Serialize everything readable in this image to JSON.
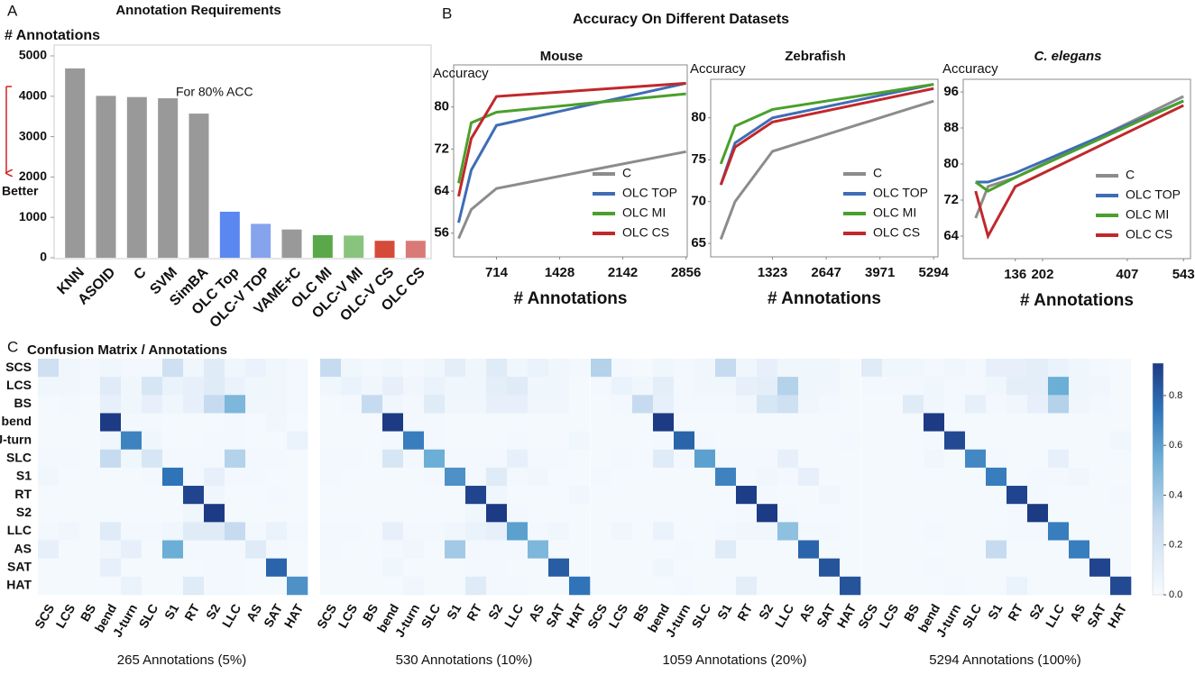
{
  "panels": [
    {
      "label": "A"
    },
    {
      "label": "B",
      "title": "Accuracy On Different Datasets"
    },
    {
      "label": "C",
      "title": "Confusion Matrix / Annotations"
    }
  ],
  "chart_data": [
    {
      "type": "bar",
      "title": "Annotation Requirements",
      "ylabel": "# Annotations",
      "annotations": [
        "For 80% ACC",
        "Better"
      ],
      "categories": [
        "KNN",
        "ASOID",
        "C",
        "SVM",
        "SimBA",
        "OLC Top",
        "OLC-V TOP",
        "VAME+C",
        "OLC MI",
        "OLC-V MI",
        "OLC-V CS",
        "OLC CS"
      ],
      "values": [
        4690,
        4010,
        3980,
        3950,
        3570,
        1140,
        840,
        700,
        560,
        550,
        420,
        420
      ],
      "colors": [
        "#999999",
        "#999999",
        "#999999",
        "#999999",
        "#999999",
        "#5a87f0",
        "#86a3ee",
        "#999999",
        "#5aa84a",
        "#88c47c",
        "#d64a3a",
        "#d97a78"
      ],
      "ylim": [
        0,
        5000
      ],
      "yticks": [
        0,
        1000,
        2000,
        3000,
        4000,
        5000
      ]
    },
    {
      "type": "line",
      "title": "Mouse",
      "ylabel": "Accuracy",
      "xlabel": "# Annotations",
      "legend": "lower right",
      "x": [
        286,
        429,
        714,
        2856
      ],
      "series": [
        {
          "name": "C",
          "color": "#8c8c8c",
          "values": [
            55,
            60.5,
            64.5,
            71.5
          ]
        },
        {
          "name": "OLC TOP",
          "color": "#3f6db5",
          "values": [
            58,
            68,
            76.5,
            84.5
          ]
        },
        {
          "name": "OLC MI",
          "color": "#4aa02c",
          "values": [
            65.5,
            77,
            79,
            82.5
          ]
        },
        {
          "name": "OLC CS",
          "color": "#c0282c",
          "values": [
            63,
            74,
            82,
            84.5
          ]
        }
      ],
      "xlim": [
        230,
        2870
      ],
      "ylim": [
        51.5,
        88
      ],
      "xticks": [
        714,
        1428,
        2142,
        2856
      ],
      "yticks": [
        56,
        64,
        72,
        80
      ]
    },
    {
      "type": "line",
      "title": "Zebrafish",
      "ylabel": "Accuracy",
      "xlabel": "# Annotations",
      "legend": "lower right",
      "x": [
        50,
        400,
        1323,
        5294
      ],
      "series": [
        {
          "name": "C",
          "color": "#8c8c8c",
          "values": [
            65.5,
            70,
            76,
            82
          ]
        },
        {
          "name": "OLC TOP",
          "color": "#3f6db5",
          "values": [
            72,
            77,
            80,
            84
          ]
        },
        {
          "name": "OLC MI",
          "color": "#4aa02c",
          "values": [
            74.5,
            79,
            81,
            84
          ]
        },
        {
          "name": "OLC CS",
          "color": "#c0282c",
          "values": [
            72,
            76.5,
            79.5,
            83.5
          ]
        }
      ],
      "xlim": [
        -200,
        5400
      ],
      "ylim": [
        63.4,
        84.6
      ],
      "xticks": [
        1323,
        2647,
        3971,
        5294
      ],
      "yticks": [
        65,
        70,
        75,
        80
      ]
    },
    {
      "type": "line",
      "title": "C. elegans",
      "ylabel": "Accuracy",
      "xlabel": "# Annotations",
      "legend": "lower right",
      "title_italic": true,
      "x": [
        40,
        70,
        136,
        543
      ],
      "series": [
        {
          "name": "C",
          "color": "#8c8c8c",
          "values": [
            68,
            75,
            77,
            95
          ]
        },
        {
          "name": "OLC TOP",
          "color": "#3f6db5",
          "values": [
            76,
            76,
            78,
            94
          ]
        },
        {
          "name": "OLC MI",
          "color": "#4aa02c",
          "values": [
            76,
            74,
            77,
            94
          ]
        },
        {
          "name": "OLC CS",
          "color": "#c0282c",
          "values": [
            74,
            64,
            75,
            93
          ]
        }
      ],
      "xlim": [
        10,
        560
      ],
      "ylim": [
        59,
        98.8
      ],
      "xticks": [
        136,
        202,
        407,
        543
      ],
      "yticks": [
        64,
        72,
        80,
        88,
        96
      ]
    },
    {
      "type": "heatmap",
      "xlabel": "265 Annotations (5%)",
      "rows": [
        "SCS",
        "LCS",
        "BS",
        "bend",
        "J-turn",
        "SLC",
        "S1",
        "RT",
        "S2",
        "LLC",
        "AS",
        "SAT",
        "HAT"
      ],
      "categories": [
        "SCS",
        "LCS",
        "BS",
        "bend",
        "J-turn",
        "SLC",
        "S1",
        "RT",
        "S2",
        "LLC",
        "AS",
        "SAT",
        "HAT"
      ],
      "values": [
        [
          0.25,
          0.05,
          0.03,
          0.05,
          0.03,
          0.03,
          0.25,
          0.05,
          0.15,
          0.05,
          0.08,
          0.05,
          0.03
        ],
        [
          0.05,
          0.05,
          0.03,
          0.15,
          0.05,
          0.2,
          0.08,
          0.1,
          0.15,
          0.08,
          0.05,
          0.05,
          0.03
        ],
        [
          0.02,
          0.03,
          0.02,
          0.1,
          0.05,
          0.1,
          0.05,
          0.1,
          0.3,
          0.5,
          0.05,
          0.05,
          0.03
        ],
        [
          0.02,
          0.02,
          0.02,
          0.93,
          0.03,
          0.03,
          0.02,
          0.02,
          0.02,
          0.03,
          0.02,
          0.05,
          0.02
        ],
        [
          0.02,
          0.02,
          0.02,
          0.05,
          0.7,
          0.05,
          0.02,
          0.02,
          0.03,
          0.03,
          0.02,
          0.02,
          0.08
        ],
        [
          0.03,
          0.03,
          0.02,
          0.3,
          0.05,
          0.2,
          0.03,
          0.03,
          0.03,
          0.35,
          0.03,
          0.03,
          0.02
        ],
        [
          0.05,
          0.02,
          0.02,
          0.02,
          0.02,
          0.03,
          0.75,
          0.03,
          0.1,
          0.03,
          0.03,
          0.02,
          0.02
        ],
        [
          0.02,
          0.02,
          0.02,
          0.02,
          0.02,
          0.02,
          0.02,
          0.9,
          0.05,
          0.02,
          0.02,
          0.03,
          0.02
        ],
        [
          0.02,
          0.02,
          0.02,
          0.02,
          0.02,
          0.02,
          0.02,
          0.05,
          0.93,
          0.02,
          0.02,
          0.02,
          0.02
        ],
        [
          0.03,
          0.05,
          0.02,
          0.15,
          0.03,
          0.03,
          0.05,
          0.15,
          0.15,
          0.3,
          0.03,
          0.08,
          0.03
        ],
        [
          0.1,
          0.02,
          0.02,
          0.05,
          0.1,
          0.02,
          0.55,
          0.03,
          0.03,
          0.03,
          0.15,
          0.03,
          0.02
        ],
        [
          0.02,
          0.02,
          0.02,
          0.1,
          0.02,
          0.02,
          0.02,
          0.02,
          0.03,
          0.03,
          0.02,
          0.8,
          0.02
        ],
        [
          0.02,
          0.02,
          0.02,
          0.02,
          0.08,
          0.02,
          0.02,
          0.15,
          0.03,
          0.03,
          0.02,
          0.02,
          0.65
        ]
      ]
    },
    {
      "type": "heatmap",
      "xlabel": "530 Annotations (10%)",
      "categories": [
        "SCS",
        "LCS",
        "BS",
        "bend",
        "J-turn",
        "SLC",
        "S1",
        "RT",
        "S2",
        "LLC",
        "AS",
        "SAT",
        "HAT"
      ],
      "values": [
        [
          0.3,
          0.05,
          0.03,
          0.05,
          0.03,
          0.05,
          0.12,
          0.05,
          0.15,
          0.05,
          0.08,
          0.05,
          0.03
        ],
        [
          0.05,
          0.08,
          0.05,
          0.1,
          0.05,
          0.08,
          0.05,
          0.05,
          0.12,
          0.15,
          0.05,
          0.05,
          0.02
        ],
        [
          0.02,
          0.03,
          0.3,
          0.05,
          0.03,
          0.15,
          0.05,
          0.05,
          0.1,
          0.1,
          0.05,
          0.05,
          0.02
        ],
        [
          0.02,
          0.02,
          0.02,
          0.93,
          0.03,
          0.03,
          0.02,
          0.02,
          0.02,
          0.02,
          0.02,
          0.02,
          0.02
        ],
        [
          0.02,
          0.02,
          0.02,
          0.03,
          0.72,
          0.03,
          0.02,
          0.02,
          0.02,
          0.03,
          0.02,
          0.02,
          0.05
        ],
        [
          0.03,
          0.03,
          0.02,
          0.2,
          0.03,
          0.55,
          0.03,
          0.03,
          0.03,
          0.1,
          0.03,
          0.03,
          0.02
        ],
        [
          0.03,
          0.02,
          0.02,
          0.02,
          0.02,
          0.03,
          0.65,
          0.03,
          0.15,
          0.03,
          0.05,
          0.02,
          0.02
        ],
        [
          0.02,
          0.02,
          0.02,
          0.02,
          0.02,
          0.02,
          0.02,
          0.9,
          0.05,
          0.02,
          0.02,
          0.02,
          0.05
        ],
        [
          0.02,
          0.02,
          0.02,
          0.02,
          0.02,
          0.02,
          0.02,
          0.05,
          0.93,
          0.03,
          0.02,
          0.02,
          0.02
        ],
        [
          0.03,
          0.03,
          0.02,
          0.1,
          0.03,
          0.03,
          0.05,
          0.08,
          0.1,
          0.6,
          0.03,
          0.05,
          0.02
        ],
        [
          0.03,
          0.02,
          0.02,
          0.03,
          0.05,
          0.02,
          0.4,
          0.03,
          0.03,
          0.03,
          0.5,
          0.02,
          0.02
        ],
        [
          0.02,
          0.02,
          0.02,
          0.05,
          0.02,
          0.02,
          0.02,
          0.03,
          0.03,
          0.02,
          0.02,
          0.82,
          0.02
        ],
        [
          0.02,
          0.02,
          0.02,
          0.02,
          0.05,
          0.02,
          0.02,
          0.15,
          0.03,
          0.03,
          0.02,
          0.02,
          0.75
        ]
      ]
    },
    {
      "type": "heatmap",
      "xlabel": "1059 Annotations (20%)",
      "categories": [
        "SCS",
        "LCS",
        "BS",
        "bend",
        "J-turn",
        "SLC",
        "S1",
        "RT",
        "S2",
        "LLC",
        "AS",
        "SAT",
        "HAT"
      ],
      "values": [
        [
          0.35,
          0.03,
          0.02,
          0.05,
          0.03,
          0.05,
          0.3,
          0.05,
          0.1,
          0.05,
          0.05,
          0.05,
          0.02
        ],
        [
          0.03,
          0.08,
          0.05,
          0.12,
          0.03,
          0.05,
          0.05,
          0.1,
          0.12,
          0.35,
          0.05,
          0.05,
          0.02
        ],
        [
          0.02,
          0.03,
          0.3,
          0.1,
          0.03,
          0.03,
          0.03,
          0.05,
          0.2,
          0.25,
          0.05,
          0.03,
          0.02
        ],
        [
          0.02,
          0.02,
          0.02,
          0.93,
          0.02,
          0.02,
          0.02,
          0.02,
          0.02,
          0.02,
          0.02,
          0.02,
          0.02
        ],
        [
          0.02,
          0.02,
          0.02,
          0.03,
          0.8,
          0.03,
          0.02,
          0.02,
          0.02,
          0.02,
          0.02,
          0.02,
          0.03
        ],
        [
          0.02,
          0.03,
          0.02,
          0.15,
          0.03,
          0.6,
          0.03,
          0.03,
          0.03,
          0.1,
          0.02,
          0.02,
          0.02
        ],
        [
          0.03,
          0.02,
          0.02,
          0.02,
          0.02,
          0.02,
          0.7,
          0.03,
          0.05,
          0.03,
          0.1,
          0.02,
          0.02
        ],
        [
          0.02,
          0.02,
          0.02,
          0.02,
          0.02,
          0.02,
          0.02,
          0.92,
          0.03,
          0.02,
          0.02,
          0.05,
          0.02
        ],
        [
          0.02,
          0.02,
          0.02,
          0.02,
          0.02,
          0.02,
          0.02,
          0.03,
          0.93,
          0.03,
          0.02,
          0.02,
          0.02
        ],
        [
          0.02,
          0.05,
          0.02,
          0.08,
          0.02,
          0.02,
          0.03,
          0.05,
          0.05,
          0.45,
          0.03,
          0.03,
          0.02
        ],
        [
          0.02,
          0.02,
          0.02,
          0.02,
          0.03,
          0.02,
          0.15,
          0.02,
          0.02,
          0.02,
          0.8,
          0.02,
          0.02
        ],
        [
          0.02,
          0.02,
          0.02,
          0.05,
          0.02,
          0.02,
          0.02,
          0.02,
          0.02,
          0.02,
          0.02,
          0.85,
          0.02
        ],
        [
          0.02,
          0.02,
          0.02,
          0.02,
          0.03,
          0.02,
          0.02,
          0.12,
          0.02,
          0.02,
          0.02,
          0.02,
          0.85
        ]
      ]
    },
    {
      "type": "heatmap",
      "xlabel": "5294 Annotations (100%)",
      "categories": [
        "SCS",
        "LCS",
        "BS",
        "bend",
        "J-turn",
        "SLC",
        "S1",
        "RT",
        "S2",
        "LLC",
        "AS",
        "SAT",
        "HAT"
      ],
      "values": [
        [
          0.15,
          0.05,
          0.05,
          0.03,
          0.05,
          0.03,
          0.1,
          0.1,
          0.12,
          0.08,
          0.05,
          0.03,
          0.02
        ],
        [
          0.03,
          0.03,
          0.03,
          0.05,
          0.03,
          0.03,
          0.05,
          0.12,
          0.12,
          0.55,
          0.05,
          0.05,
          0.02
        ],
        [
          0.02,
          0.02,
          0.15,
          0.05,
          0.03,
          0.1,
          0.03,
          0.05,
          0.1,
          0.35,
          0.05,
          0.03,
          0.02
        ],
        [
          0.02,
          0.02,
          0.02,
          0.93,
          0.02,
          0.02,
          0.02,
          0.02,
          0.02,
          0.02,
          0.02,
          0.02,
          0.02
        ],
        [
          0.02,
          0.02,
          0.02,
          0.03,
          0.88,
          0.02,
          0.02,
          0.02,
          0.02,
          0.02,
          0.02,
          0.02,
          0.05
        ],
        [
          0.02,
          0.02,
          0.02,
          0.05,
          0.02,
          0.68,
          0.03,
          0.02,
          0.02,
          0.1,
          0.02,
          0.02,
          0.02
        ],
        [
          0.02,
          0.02,
          0.02,
          0.02,
          0.02,
          0.02,
          0.72,
          0.02,
          0.03,
          0.03,
          0.05,
          0.02,
          0.02
        ],
        [
          0.02,
          0.02,
          0.02,
          0.02,
          0.02,
          0.02,
          0.02,
          0.9,
          0.03,
          0.02,
          0.02,
          0.02,
          0.03
        ],
        [
          0.02,
          0.02,
          0.02,
          0.02,
          0.02,
          0.02,
          0.02,
          0.03,
          0.95,
          0.02,
          0.02,
          0.02,
          0.02
        ],
        [
          0.02,
          0.02,
          0.02,
          0.03,
          0.02,
          0.02,
          0.02,
          0.03,
          0.03,
          0.72,
          0.02,
          0.02,
          0.02
        ],
        [
          0.02,
          0.02,
          0.02,
          0.02,
          0.02,
          0.02,
          0.3,
          0.02,
          0.02,
          0.02,
          0.72,
          0.02,
          0.02
        ],
        [
          0.02,
          0.02,
          0.02,
          0.03,
          0.02,
          0.02,
          0.02,
          0.02,
          0.02,
          0.02,
          0.02,
          0.9,
          0.02
        ],
        [
          0.02,
          0.02,
          0.02,
          0.02,
          0.03,
          0.02,
          0.02,
          0.08,
          0.02,
          0.02,
          0.02,
          0.02,
          0.88
        ]
      ],
      "colorbar": {
        "lim": [
          0,
          0.93
        ],
        "ticks": [
          {
            "value": 0,
            "label": "0.0"
          },
          0.2,
          0.4,
          0.6,
          0.8
        ]
      }
    }
  ]
}
